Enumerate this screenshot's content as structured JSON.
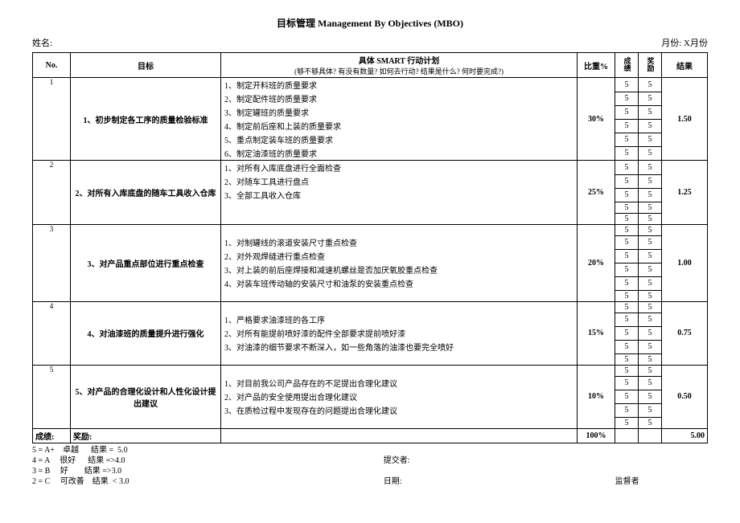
{
  "title": "目标管理 Management By Objectives (MBO)",
  "header": {
    "name_label": "姓名:",
    "month_label": "月份:",
    "month_value": "X月份"
  },
  "columns": {
    "no": "No.",
    "objective": "目标",
    "plan": "具体 SMART 行动计划",
    "plan_sub": "(够不够具体?  有没有数量?  如何去行动?  结果是什么?  何时要完成?)",
    "weight": "比重%",
    "vert1": "成绩",
    "vert2": "奖励",
    "result": "结果"
  },
  "rows": [
    {
      "no": "1",
      "objective": "1、初步制定各工序的质量检验标准",
      "plans": [
        "1、制定开料班的质量要求",
        "2、制定配件班的质量要求",
        "3、制定罐班的质量要求",
        "4、制定前后座和上装的质量要求",
        "5、重点制定装车班的质量要求",
        "6、制定油漆班的质量要求"
      ],
      "weight": "30%",
      "score": [
        "5",
        "5",
        "5",
        "5",
        "5",
        "5"
      ],
      "bonus": [
        "5",
        "5",
        "5",
        "5",
        "5",
        "5"
      ],
      "result": "1.50"
    },
    {
      "no": "2",
      "objective": "2、对所有入库底盘的随车工具收入仓库",
      "plans": [
        "1、对所有入库底盘进行全面检查",
        "2、对随车工具进行盘点",
        "3、全部工具收入仓库",
        "",
        ""
      ],
      "weight": "25%",
      "score": [
        "5",
        "5",
        "5",
        "5",
        "5"
      ],
      "bonus": [
        "5",
        "5",
        "5",
        "5",
        "5"
      ],
      "result": "1.25"
    },
    {
      "no": "3",
      "objective": "3、对产品重点部位进行重点检查",
      "plans": [
        "",
        "1、对制罐线的滚道安装尺寸重点检查",
        "2、对外观焊缝进行重点检查",
        "3、对上装的前后座焊接和减速机螺丝是否加厌氧胶重点检查",
        "4、对装车班传动轴的安装尺寸和油泵的安装重点检查",
        ""
      ],
      "weight": "20%",
      "score": [
        "5",
        "5",
        "5",
        "5",
        "5",
        "5"
      ],
      "bonus": [
        "5",
        "5",
        "5",
        "5",
        "5",
        "5"
      ],
      "result": "1.00"
    },
    {
      "no": "4",
      "objective": "4、对油漆班的质量提升进行强化",
      "plans": [
        "",
        "1、严格要求油漆班的各工序",
        "2、对所有能提前喷好漆的配件全部要求提前喷好漆",
        "3、对油漆的细节要求不断深入，如一些角落的油漆也要完全喷好",
        ""
      ],
      "weight": "15%",
      "score": [
        "5",
        "5",
        "5",
        "5",
        "5"
      ],
      "bonus": [
        "5",
        "5",
        "5",
        "5",
        "5"
      ],
      "result": "0.75"
    },
    {
      "no": "5",
      "objective": "5、对产品的合理化设计和人性化设计提出建议",
      "plans": [
        "",
        "1、对目前我公司产品存在的不足提出合理化建议",
        "2、对产品的安全使用提出合理化建议",
        "3、在质检过程中发现存在的问题提出合理化建议",
        ""
      ],
      "weight": "10%",
      "score": [
        "5",
        "5",
        "5",
        "5",
        "5"
      ],
      "bonus": [
        "5",
        "5",
        "5",
        "5",
        "5"
      ],
      "result": "0.50"
    }
  ],
  "totals": {
    "grade_label": "成绩:",
    "bonus_label": "奖励:",
    "weight_total": "100%",
    "result_total": "5.00"
  },
  "footer": {
    "grades": [
      "5 = A+    卓越      结果 =  5.0",
      "4 = A     很好      结果 =>4.0",
      "3 = B     好        结果 =>3.0",
      "2 = C     可改善    结果  < 3.0"
    ],
    "submitter": "提交者:",
    "date": "日期:",
    "supervisor": "监督者"
  }
}
